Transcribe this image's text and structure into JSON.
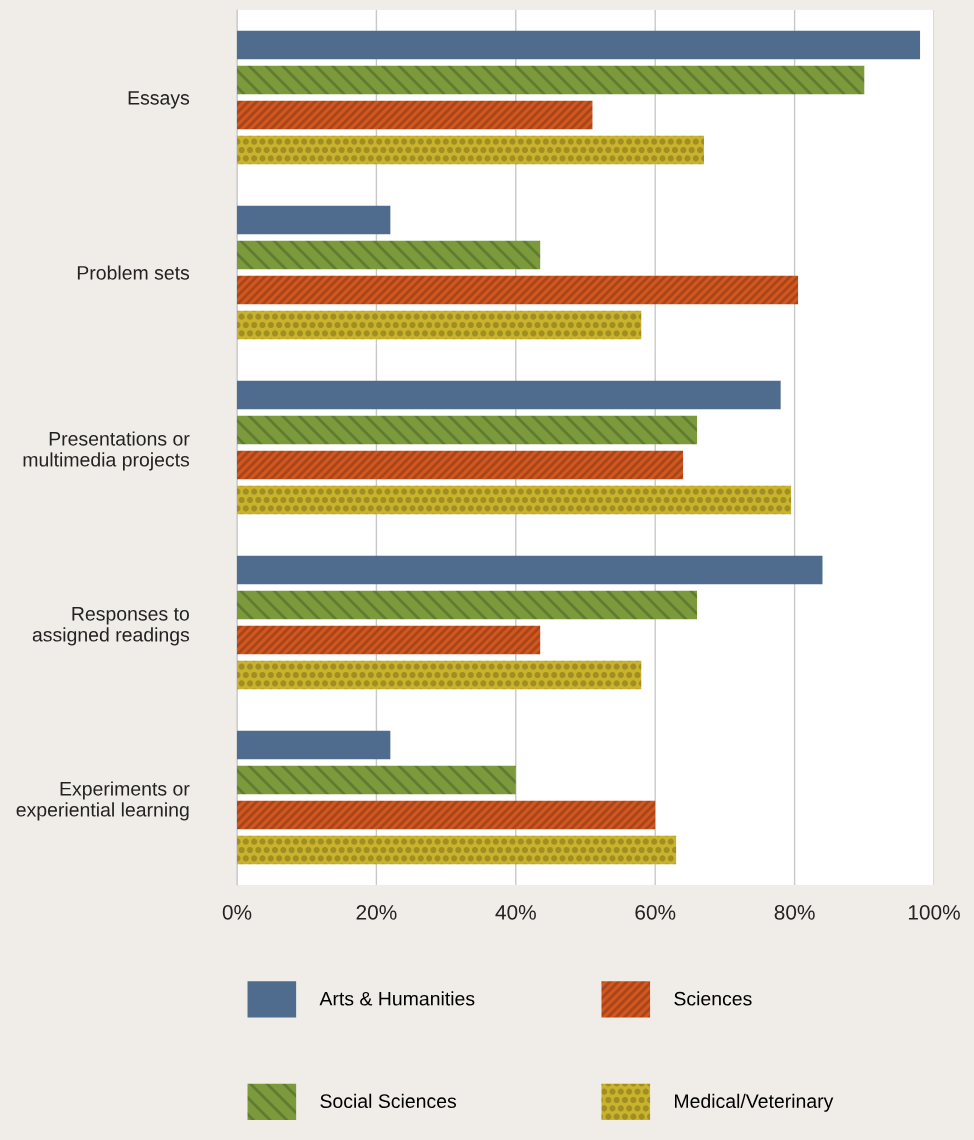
{
  "chart_data": {
    "type": "bar",
    "orientation": "horizontal",
    "categories": [
      "Essays",
      "Problem sets",
      "Presentations or\nmultimedia projects",
      "Responses to\nassigned readings",
      "Experiments or\nexperiential learning"
    ],
    "series": [
      {
        "name": "Arts & Humanities",
        "color": "#4f6b8e",
        "values": [
          98,
          22,
          78,
          84,
          22
        ]
      },
      {
        "name": "Social Sciences",
        "color": "#7a9a3c",
        "values": [
          90,
          43.5,
          66,
          66,
          40
        ]
      },
      {
        "name": "Sciences",
        "color": "#d2561f",
        "values": [
          51,
          80.5,
          64,
          43.5,
          60
        ]
      },
      {
        "name": "Medical/Veterinary",
        "color": "#c9b22c",
        "values": [
          67,
          58,
          79.5,
          58,
          63
        ]
      }
    ],
    "xlim": [
      0,
      100
    ],
    "xticks": [
      {
        "value": 0,
        "label": "0%"
      },
      {
        "value": 20,
        "label": "20%"
      },
      {
        "value": 40,
        "label": "40%"
      },
      {
        "value": 60,
        "label": "60%"
      },
      {
        "value": 80,
        "label": "80%"
      },
      {
        "value": 100,
        "label": "100%"
      }
    ],
    "grid": "x",
    "legend": "bottom"
  }
}
